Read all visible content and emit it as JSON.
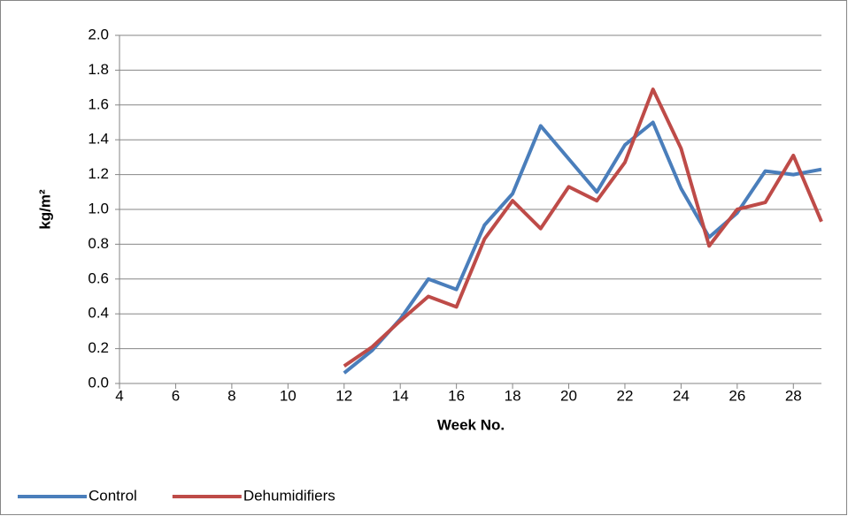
{
  "chart_data": {
    "type": "line",
    "x_label": "Week No.",
    "y_label": "kg/m²",
    "x": [
      12,
      13,
      14,
      15,
      16,
      17,
      18,
      19,
      20,
      21,
      22,
      23,
      24,
      25,
      26,
      27,
      28,
      29
    ],
    "series": [
      {
        "name": "Control",
        "color": "#4a7ebb",
        "values": [
          0.06,
          0.19,
          0.37,
          0.6,
          0.54,
          0.91,
          1.09,
          1.48,
          1.29,
          1.1,
          1.37,
          1.5,
          1.12,
          0.84,
          0.98,
          1.22,
          1.2,
          1.23
        ]
      },
      {
        "name": "Dehumidifiers",
        "color": "#be4b48",
        "values": [
          0.1,
          0.21,
          0.36,
          0.5,
          0.44,
          0.83,
          1.05,
          0.89,
          1.13,
          1.05,
          1.27,
          1.69,
          1.35,
          0.79,
          1.0,
          1.04,
          1.31,
          0.93
        ]
      }
    ],
    "xlim": [
      4,
      29
    ],
    "xticks": [
      4,
      6,
      8,
      10,
      12,
      14,
      16,
      18,
      20,
      22,
      24,
      26,
      28
    ],
    "ylim": [
      0,
      2
    ],
    "yticks": [
      {
        "value": 0,
        "label": "0.0"
      },
      0.2,
      0.4,
      0.6,
      0.8,
      {
        "value": 1,
        "label": "1.0"
      },
      1.2,
      1.4,
      1.6,
      1.8,
      {
        "value": 2,
        "label": "2.0"
      }
    ],
    "grid": true,
    "legend": "bottom-left"
  }
}
